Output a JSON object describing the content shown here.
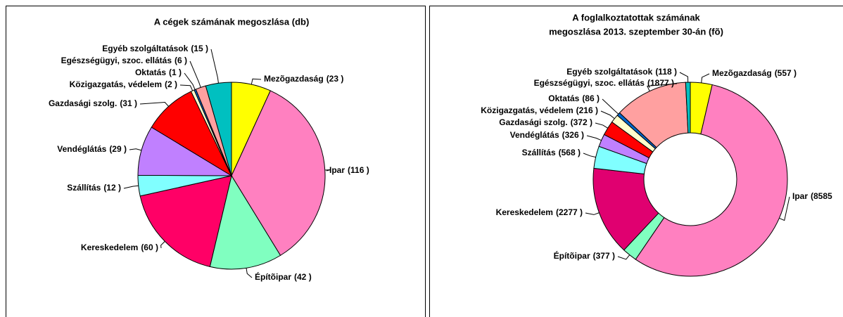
{
  "chart_data": [
    {
      "type": "pie",
      "title": "A cégek számának megoszlása (db)",
      "categories": [
        "Mezõgazdaság",
        "Ipar",
        "Építõipar",
        "Kereskedelem",
        "Szállítás",
        "Vendéglátás",
        "Gazdasági szolg.",
        "Közigazgatás, védelem",
        "Oktatás",
        "Egészségügyi, szoc. ellátás",
        "Egyéb szolgáltatások"
      ],
      "values": [
        23,
        116,
        42,
        60,
        12,
        29,
        31,
        2,
        1,
        6,
        15
      ],
      "value_labels": [
        "(23 )",
        "(116 )",
        "(42 )",
        "(60 )",
        "(12 )",
        "(29 )",
        "(31 )",
        "(2 )",
        "(1 )",
        "(6 )",
        "(15 )"
      ],
      "colors": [
        "#ffff00",
        "#ff80c0",
        "#80ffc0",
        "#ff0066",
        "#80ffff",
        "#c080ff",
        "#ff0000",
        "#ffffcc",
        "#0066cc",
        "#ffa0a0",
        "#00c0c0"
      ]
    },
    {
      "type": "donut",
      "title": [
        "A foglalkoztatottak számának",
        "megoszlása 2013. szeptember 30-án (fõ)"
      ],
      "categories": [
        "Mezõgazdaság",
        "Ipar",
        "Építõipar",
        "Kereskedelem",
        "Szállítás",
        "Vendéglátás",
        "Gazdasági szolg.",
        "Közigazgatás, védelem",
        "Oktatás",
        "Egészségügyi, szoc. ellátás",
        "Egyéb szolgáltatások"
      ],
      "values": [
        557,
        8585,
        377,
        2277,
        568,
        326,
        372,
        216,
        86,
        1877,
        118
      ],
      "value_labels": [
        "(557 )",
        "(8585",
        "(377 )",
        "(2277 )",
        "(568 )",
        "(326 )",
        "(372 )",
        "(216 )",
        "(86 )",
        "(1877 )",
        "(118 )"
      ],
      "colors": [
        "#ffff00",
        "#ff80c0",
        "#80ffc0",
        "#e00070",
        "#80ffff",
        "#c080ff",
        "#ff0000",
        "#ffffcc",
        "#0066cc",
        "#ffa0a0",
        "#00c0c0"
      ]
    }
  ]
}
